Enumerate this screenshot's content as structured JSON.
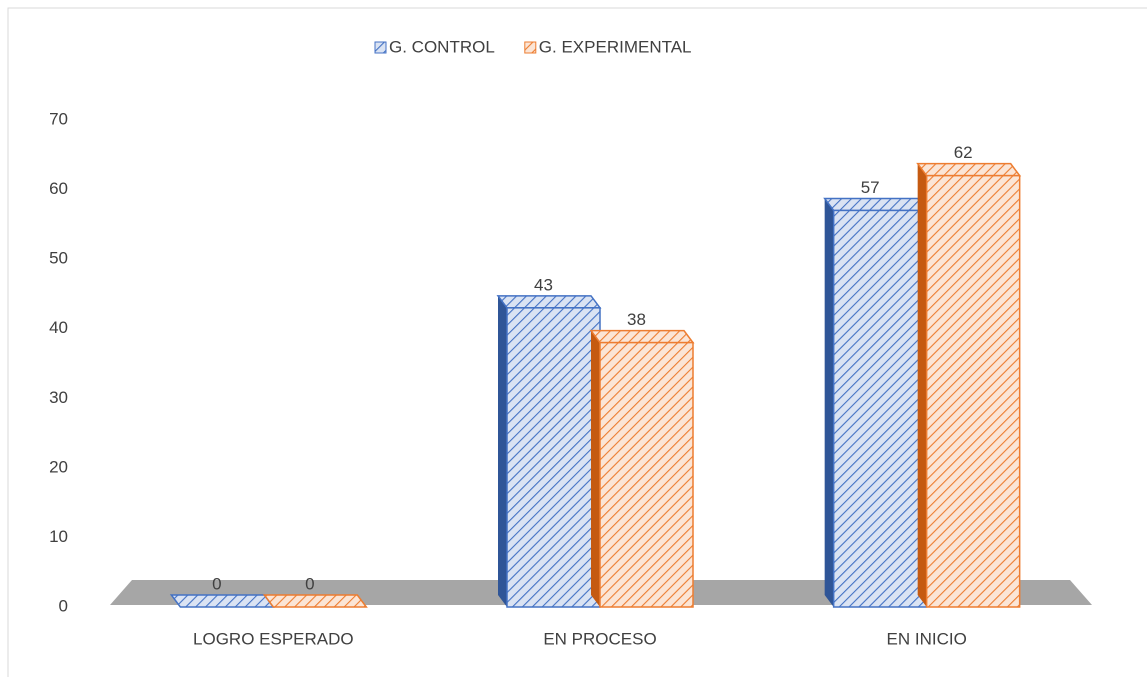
{
  "chart_data": {
    "type": "bar",
    "categories": [
      "LOGRO ESPERADO",
      "EN PROCESO",
      "EN INICIO"
    ],
    "series": [
      {
        "name": "G. CONTROL",
        "color": "#4472c4",
        "values": [
          0,
          43,
          57
        ]
      },
      {
        "name": "G. EXPERIMENTAL",
        "color": "#ed7d31",
        "values": [
          0,
          38,
          62
        ]
      }
    ],
    "ylim": [
      0,
      70
    ],
    "yticks": [
      0,
      10,
      20,
      30,
      40,
      50,
      60,
      70
    ],
    "grid": false,
    "legend": "top"
  }
}
